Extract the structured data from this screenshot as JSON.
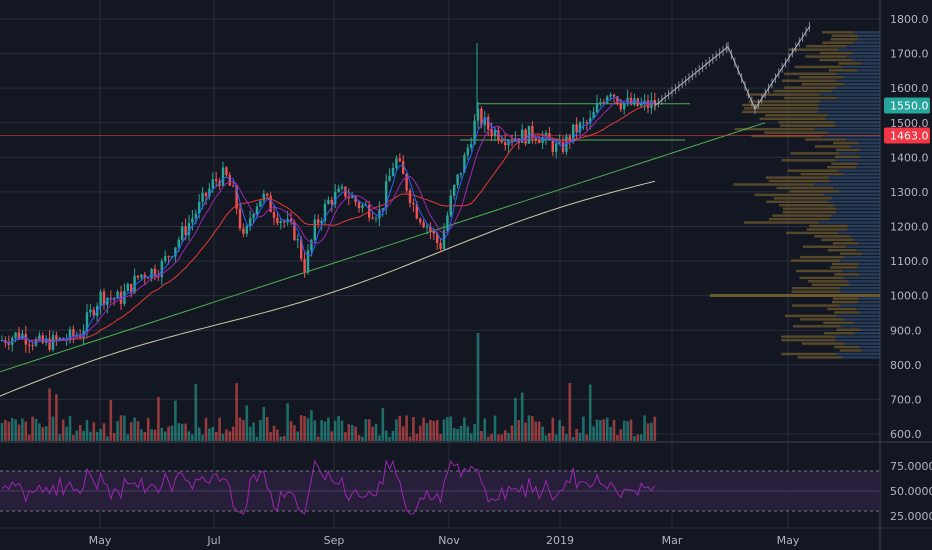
{
  "colors": {
    "background": "#131722",
    "grid": "#2a2e39",
    "candle_up": "#26a69a",
    "candle_down": "#ef5350",
    "ma_fast": "#2962ff",
    "ma_mid": "#9c27b0",
    "ma_slow": "#e53935",
    "ma_200": "#d1c4a9",
    "trendline": "#4caf50",
    "horizontal_level": "#e53935",
    "channel": "#4caf50",
    "projection": "#b2b5be",
    "price_badge_green": "#26a69a",
    "price_badge_red": "#f23645",
    "rsi_line": "#9c27b0",
    "rsi_band": "#2a1f3d",
    "volume_profile_left": "#6d5a2f",
    "volume_profile_right": "#2d4a6b"
  },
  "chart_data": [
    {
      "type": "candlestick",
      "panel": "price",
      "x_ticks": [
        "May",
        "Jul",
        "Sep",
        "Nov",
        "2019",
        "Mar",
        "May"
      ],
      "y_ticks": [
        "1800.0",
        "1700.0",
        "1600.0",
        "1500.0",
        "1400.0",
        "1300.0",
        "1200.0",
        "1100.0",
        "1000.0",
        "900.0",
        "800.0",
        "700.0",
        "600.0"
      ],
      "ylim": [
        560,
        1850
      ],
      "price_labels": {
        "current": "1550.0",
        "level": "1463.0"
      },
      "horizontal_level": 1463,
      "channel_levels": [
        1550,
        1463
      ],
      "trendline": {
        "x_start": "Apr",
        "y_start": 780,
        "x_end": "Apr",
        "y_end": 1500
      },
      "grid": true
    },
    {
      "type": "line",
      "panel": "rsi",
      "y_ticks": [
        "75.0000",
        "50.0000",
        "25.0000"
      ],
      "bands": [
        70,
        30
      ],
      "ylim": [
        15,
        90
      ]
    }
  ]
}
